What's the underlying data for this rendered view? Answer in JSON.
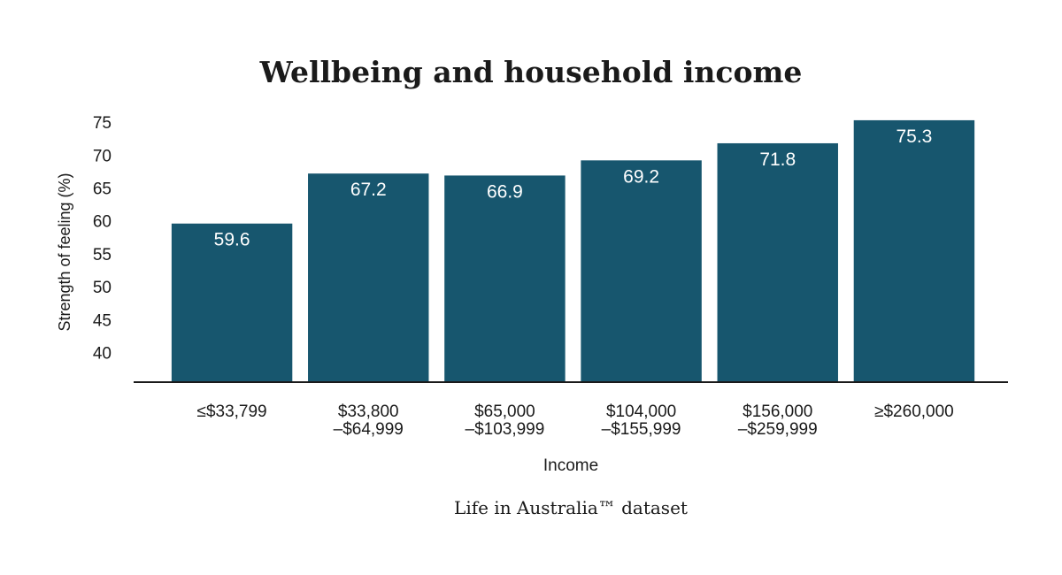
{
  "chart_data": {
    "type": "bar",
    "title": "Wellbeing and household income",
    "xlabel": "Income",
    "ylabel": "Strength of feeling (%)",
    "source": "Life in Australia™ dataset",
    "categories": [
      [
        "≤$33,799"
      ],
      [
        "$33,800",
        "–$64,999"
      ],
      [
        "$65,000",
        "–$103,999"
      ],
      [
        "$104,000",
        "–$155,999"
      ],
      [
        "$156,000",
        "–$259,999"
      ],
      [
        "≥$260,000"
      ]
    ],
    "values": [
      59.6,
      67.2,
      66.9,
      69.2,
      71.8,
      75.3
    ],
    "value_labels": [
      "59.6",
      "67.2",
      "66.9",
      "69.2",
      "71.8",
      "75.3"
    ],
    "yticks": [
      40,
      45,
      50,
      55,
      60,
      65,
      70,
      75
    ],
    "ylim": [
      35.5,
      76.5
    ],
    "grid": false,
    "colors": {
      "bar": "#17566e",
      "axis": "#1a1a1a",
      "bar_label": "#ffffff"
    }
  }
}
